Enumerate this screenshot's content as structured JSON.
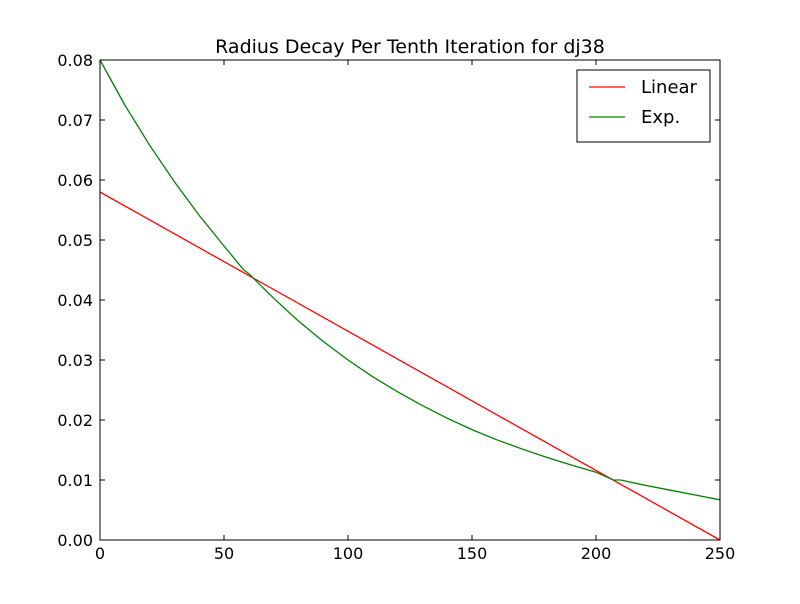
{
  "chart_data": {
    "type": "line",
    "title": "Radius Decay Per Tenth Iteration for dj38",
    "xlabel": "",
    "ylabel": "",
    "xlim": [
      0,
      250
    ],
    "ylim": [
      0.0,
      0.08
    ],
    "x_ticks": [
      0,
      50,
      100,
      150,
      200,
      250
    ],
    "x_tick_labels": [
      "0",
      "50",
      "100",
      "150",
      "200",
      "250"
    ],
    "y_ticks": [
      0.0,
      0.01,
      0.02,
      0.03,
      0.04,
      0.05,
      0.06,
      0.07,
      0.08
    ],
    "y_tick_labels": [
      "0.00",
      "0.01",
      "0.02",
      "0.03",
      "0.04",
      "0.05",
      "0.06",
      "0.07",
      "0.08"
    ],
    "grid": false,
    "legend_position": "top-right",
    "series": [
      {
        "name": "Linear",
        "color": "#ff0000",
        "x": [
          0,
          250
        ],
        "y": [
          0.058,
          0.0
        ]
      },
      {
        "name": "Exp.",
        "color": "#008000",
        "x": [
          0,
          10,
          20,
          30,
          40,
          50,
          58,
          60,
          70,
          80,
          90,
          100,
          110,
          120,
          130,
          140,
          150,
          160,
          170,
          180,
          190,
          200,
          207,
          210,
          220,
          230,
          240,
          250
        ],
        "y": [
          0.08,
          0.0725,
          0.0658,
          0.0597,
          0.0541,
          0.049,
          0.045,
          0.0444,
          0.0403,
          0.0365,
          0.0331,
          0.03,
          0.0272,
          0.0247,
          0.0224,
          0.0203,
          0.0184,
          0.0167,
          0.0152,
          0.0138,
          0.0125,
          0.0113,
          0.01,
          0.01,
          0.0091,
          0.0083,
          0.0075,
          0.0067
        ]
      }
    ]
  }
}
